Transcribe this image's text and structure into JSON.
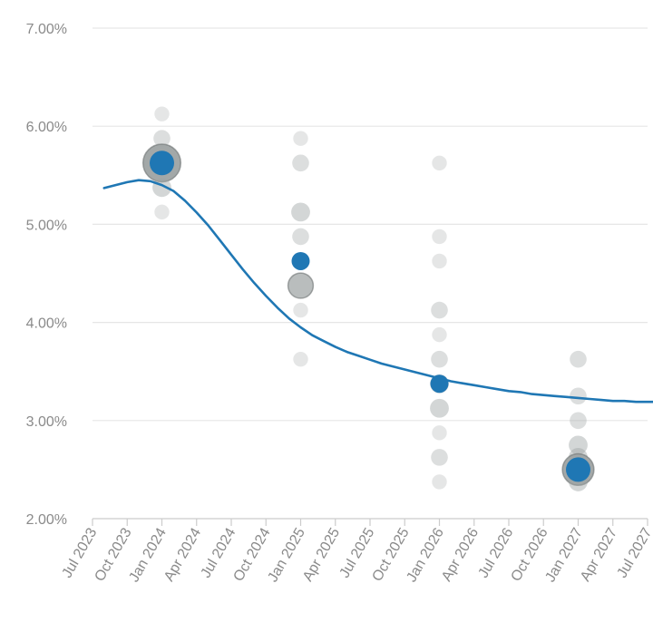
{
  "chart_data": {
    "type": "scatter",
    "title": "",
    "xlabel": "",
    "ylabel": "",
    "ylim": [
      2.0,
      7.0
    ],
    "y_ticks": [
      "2.00%",
      "3.00%",
      "4.00%",
      "5.00%",
      "6.00%",
      "7.00%"
    ],
    "x_ticks": [
      "Jul 2023",
      "Oct 2023",
      "Jan 2024",
      "Apr 2024",
      "Jul 2024",
      "Oct 2024",
      "Jan 2025",
      "Apr 2025",
      "Jul 2025",
      "Oct 2025",
      "Jan 2026",
      "Apr 2026",
      "Jul 2026",
      "Oct 2026",
      "Jan 2027",
      "Apr 2027",
      "Jul 2027"
    ],
    "grid": true,
    "colors": {
      "line": "#1f77b4",
      "median_dot": "#1f77b4",
      "dot": "#9ea3a3",
      "grid": "#e6e6e6",
      "axis": "#cccccc",
      "tick_text": "#8a8a8a"
    },
    "dot_plot": [
      {
        "x": "Jan 2024",
        "points": [
          {
            "y": 6.125,
            "count": 1
          },
          {
            "y": 5.875,
            "count": 2
          },
          {
            "y": 5.625,
            "count": 12
          },
          {
            "y": 5.375,
            "count": 3
          },
          {
            "y": 5.125,
            "count": 1
          }
        ],
        "median": 5.625
      },
      {
        "x": "Jan 2025",
        "points": [
          {
            "y": 5.875,
            "count": 1
          },
          {
            "y": 5.625,
            "count": 2
          },
          {
            "y": 5.125,
            "count": 3
          },
          {
            "y": 4.875,
            "count": 2
          },
          {
            "y": 4.625,
            "count": 1
          },
          {
            "y": 4.375,
            "count": 6
          },
          {
            "y": 4.125,
            "count": 1
          },
          {
            "y": 3.625,
            "count": 1
          }
        ],
        "median": 4.625
      },
      {
        "x": "Jan 2026",
        "points": [
          {
            "y": 5.625,
            "count": 1
          },
          {
            "y": 4.875,
            "count": 1
          },
          {
            "y": 4.625,
            "count": 1
          },
          {
            "y": 4.125,
            "count": 2
          },
          {
            "y": 3.875,
            "count": 1
          },
          {
            "y": 3.625,
            "count": 2
          },
          {
            "y": 3.375,
            "count": 3
          },
          {
            "y": 3.125,
            "count": 3
          },
          {
            "y": 2.875,
            "count": 1
          },
          {
            "y": 2.625,
            "count": 2
          },
          {
            "y": 2.375,
            "count": 1
          }
        ],
        "median": 3.375
      },
      {
        "x": "Jan 2027",
        "points": [
          {
            "y": 3.625,
            "count": 2
          },
          {
            "y": 3.25,
            "count": 2
          },
          {
            "y": 3.0,
            "count": 2
          },
          {
            "y": 2.75,
            "count": 3
          },
          {
            "y": 2.625,
            "count": 3
          },
          {
            "y": 2.5,
            "count": 9
          },
          {
            "y": 2.375,
            "count": 3
          }
        ],
        "median": 2.5
      }
    ],
    "series": [
      {
        "values": [
          {
            "x": "Aug 2023",
            "y": 5.37
          },
          {
            "x": "Sep 2023",
            "y": 5.4
          },
          {
            "x": "Oct 2023",
            "y": 5.43
          },
          {
            "x": "Nov 2023",
            "y": 5.45
          },
          {
            "x": "Dec 2023",
            "y": 5.44
          },
          {
            "x": "Jan 2024",
            "y": 5.4
          },
          {
            "x": "Feb 2024",
            "y": 5.34
          },
          {
            "x": "Mar 2024",
            "y": 5.24
          },
          {
            "x": "Apr 2024",
            "y": 5.12
          },
          {
            "x": "May 2024",
            "y": 4.99
          },
          {
            "x": "Jun 2024",
            "y": 4.84
          },
          {
            "x": "Jul 2024",
            "y": 4.69
          },
          {
            "x": "Aug 2024",
            "y": 4.54
          },
          {
            "x": "Sep 2024",
            "y": 4.4
          },
          {
            "x": "Oct 2024",
            "y": 4.27
          },
          {
            "x": "Nov 2024",
            "y": 4.15
          },
          {
            "x": "Dec 2024",
            "y": 4.04
          },
          {
            "x": "Jan 2025",
            "y": 3.95
          },
          {
            "x": "Feb 2025",
            "y": 3.87
          },
          {
            "x": "Mar 2025",
            "y": 3.81
          },
          {
            "x": "Apr 2025",
            "y": 3.75
          },
          {
            "x": "May 2025",
            "y": 3.7
          },
          {
            "x": "Jun 2025",
            "y": 3.66
          },
          {
            "x": "Jul 2025",
            "y": 3.62
          },
          {
            "x": "Aug 2025",
            "y": 3.58
          },
          {
            "x": "Sep 2025",
            "y": 3.55
          },
          {
            "x": "Oct 2025",
            "y": 3.52
          },
          {
            "x": "Nov 2025",
            "y": 3.49
          },
          {
            "x": "Dec 2025",
            "y": 3.46
          },
          {
            "x": "Jan 2026",
            "y": 3.43
          },
          {
            "x": "Feb 2026",
            "y": 3.4
          },
          {
            "x": "Mar 2026",
            "y": 3.38
          },
          {
            "x": "Apr 2026",
            "y": 3.36
          },
          {
            "x": "May 2026",
            "y": 3.34
          },
          {
            "x": "Jun 2026",
            "y": 3.32
          },
          {
            "x": "Jul 2026",
            "y": 3.3
          },
          {
            "x": "Aug 2026",
            "y": 3.29
          },
          {
            "x": "Sep 2026",
            "y": 3.27
          },
          {
            "x": "Oct 2026",
            "y": 3.26
          },
          {
            "x": "Nov 2026",
            "y": 3.25
          },
          {
            "x": "Dec 2026",
            "y": 3.24
          },
          {
            "x": "Jan 2027",
            "y": 3.23
          },
          {
            "x": "Feb 2027",
            "y": 3.22
          },
          {
            "x": "Mar 2027",
            "y": 3.21
          },
          {
            "x": "Apr 2027",
            "y": 3.2
          },
          {
            "x": "May 2027",
            "y": 3.2
          },
          {
            "x": "Jun 2027",
            "y": 3.19
          },
          {
            "x": "Jul 2027",
            "y": 3.19
          },
          {
            "x": "Aug 2027",
            "y": 3.19
          }
        ]
      }
    ]
  }
}
